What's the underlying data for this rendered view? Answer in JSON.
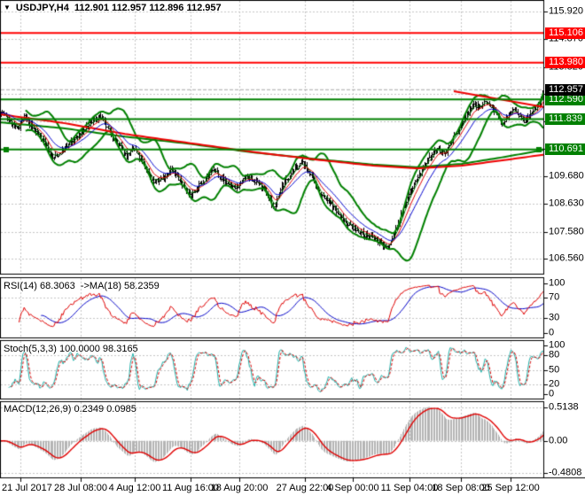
{
  "title": {
    "dropdown_icon": "▼",
    "symbol_period": "USDJPY,H4",
    "ohlc": "112.901 112.957 112.896 112.957"
  },
  "chart_data": {
    "type": "candlestick",
    "symbol": "USDJPY",
    "timeframe": "H4",
    "last_open": 112.901,
    "last_high": 112.957,
    "last_low": 112.896,
    "last_close": 112.957,
    "x_labels": [
      "21 Jul 2017",
      "28 Jul 08:00",
      "4 Aug 12:00",
      "11 Aug 16:00",
      "18 Aug 20:00",
      "27 Aug 22:00",
      "4 Sep 00:00",
      "11 Sep 04:00",
      "18 Sep 08:00",
      "25 Sep 12:00"
    ],
    "price_ticks": [
      {
        "label": "115.920",
        "price": 115.92
      },
      {
        "label": "114.870",
        "price": 114.87
      },
      {
        "label": "113.820",
        "price": 113.82
      },
      {
        "label": "109.680",
        "price": 109.68
      },
      {
        "label": "108.630",
        "price": 108.63
      },
      {
        "label": "107.580",
        "price": 107.58
      },
      {
        "label": "106.560",
        "price": 106.56
      }
    ],
    "close_keyframes": [
      [
        0,
        112.15
      ],
      [
        10,
        111.75
      ],
      [
        18,
        111.45
      ],
      [
        26,
        111.95
      ],
      [
        34,
        111.55
      ],
      [
        46,
        111.15
      ],
      [
        58,
        110.35
      ],
      [
        68,
        110.6
      ],
      [
        78,
        110.95
      ],
      [
        90,
        111.3
      ],
      [
        102,
        111.75
      ],
      [
        112,
        111.95
      ],
      [
        120,
        111.5
      ],
      [
        132,
        110.9
      ],
      [
        142,
        110.45
      ],
      [
        150,
        110.75
      ],
      [
        160,
        110.15
      ],
      [
        172,
        109.45
      ],
      [
        182,
        109.6
      ],
      [
        192,
        109.95
      ],
      [
        204,
        109.4
      ],
      [
        214,
        108.95
      ],
      [
        226,
        109.45
      ],
      [
        240,
        109.95
      ],
      [
        252,
        109.5
      ],
      [
        264,
        109.2
      ],
      [
        276,
        109.65
      ],
      [
        290,
        109.45
      ],
      [
        302,
        108.9
      ],
      [
        308,
        108.45
      ],
      [
        316,
        109.25
      ],
      [
        328,
        109.85
      ],
      [
        340,
        110.2
      ],
      [
        350,
        109.7
      ],
      [
        360,
        109.0
      ],
      [
        372,
        108.65
      ],
      [
        384,
        108.1
      ],
      [
        396,
        107.75
      ],
      [
        408,
        107.5
      ],
      [
        420,
        107.35
      ],
      [
        430,
        107.1
      ],
      [
        437,
        106.98
      ],
      [
        444,
        107.55
      ],
      [
        452,
        108.25
      ],
      [
        462,
        109.15
      ],
      [
        472,
        109.75
      ],
      [
        482,
        110.3
      ],
      [
        492,
        110.75
      ],
      [
        500,
        110.5
      ],
      [
        508,
        111.05
      ],
      [
        516,
        111.4
      ],
      [
        524,
        111.95
      ],
      [
        532,
        112.4
      ],
      [
        540,
        112.3
      ],
      [
        546,
        112.55
      ],
      [
        552,
        112.35
      ],
      [
        558,
        112.1
      ],
      [
        565,
        111.7
      ],
      [
        572,
        111.95
      ],
      [
        578,
        112.25
      ],
      [
        584,
        111.95
      ],
      [
        590,
        111.8
      ],
      [
        596,
        112.05
      ],
      [
        602,
        112.25
      ],
      [
        607,
        112.45
      ],
      [
        613,
        112.957
      ]
    ],
    "overlays": {
      "bollinger": {
        "period": 20,
        "deviation": 2,
        "color": "#008000"
      },
      "ma_slow_red": {
        "color": "#ee0000",
        "keyframes": [
          [
            0,
            112.02
          ],
          [
            70,
            111.7
          ],
          [
            140,
            111.28
          ],
          [
            210,
            110.95
          ],
          [
            280,
            110.62
          ],
          [
            350,
            110.33
          ],
          [
            420,
            110.08
          ],
          [
            470,
            109.98
          ],
          [
            520,
            110.08
          ],
          [
            570,
            110.3
          ],
          [
            613,
            110.5
          ]
        ]
      },
      "ma_slow_green": {
        "color": "#008000",
        "keyframes": [
          [
            0,
            111.72
          ],
          [
            70,
            111.5
          ],
          [
            140,
            111.18
          ],
          [
            210,
            110.92
          ],
          [
            280,
            110.6
          ],
          [
            350,
            110.35
          ],
          [
            420,
            110.12
          ],
          [
            470,
            110.02
          ],
          [
            520,
            110.15
          ],
          [
            570,
            110.42
          ],
          [
            613,
            110.68
          ]
        ]
      },
      "fast_emas": [
        {
          "period": 5,
          "color": "#007000"
        },
        {
          "period": 10,
          "color": "#e00000"
        },
        {
          "period": 20,
          "color": "#0000d0"
        }
      ]
    },
    "levels": [
      {
        "price": 115.106,
        "label": "115.106",
        "color": "#ff0000",
        "selected": false
      },
      {
        "price": 113.98,
        "label": "113.980",
        "color": "#ff0000",
        "selected": false
      },
      {
        "price": 112.59,
        "label": "112.590",
        "color": "#008000",
        "selected": false
      },
      {
        "price": 111.839,
        "label": "111.839",
        "color": "#008000",
        "selected": false
      },
      {
        "price": 110.691,
        "label": "110.691",
        "color": "#008000",
        "selected": true
      }
    ],
    "current_price": {
      "value": 112.957,
      "label": "112.957",
      "badge_color": "#000000"
    },
    "trendline": {
      "color": "#ee0000",
      "from": [
        512,
        112.9
      ],
      "to": [
        613,
        112.3
      ]
    },
    "indicators": {
      "rsi": {
        "label": "RSI(14) 68.3063  ->MA(18) 58.2359",
        "period": 14,
        "ma_period": 18,
        "value": 68.3063,
        "ma_value": 58.2359,
        "ticks": [
          {
            "label": "100",
            "v": 100
          },
          {
            "label": "70",
            "v": 70
          },
          {
            "label": "30",
            "v": 30
          },
          {
            "label": "0",
            "v": 0
          }
        ],
        "grid_levels": [
          70,
          30
        ],
        "line_color": "#e00000",
        "ma_color": "#0000c8"
      },
      "stoch": {
        "label": "Stoch(5,3,3) 100.0000 98.3165",
        "value": 100.0,
        "signal": 98.3165,
        "ticks": [
          {
            "label": "100",
            "v": 100
          },
          {
            "label": "80",
            "v": 80
          },
          {
            "label": "50",
            "v": 50
          },
          {
            "label": "20",
            "v": 20
          },
          {
            "label": "0",
            "v": 0
          }
        ],
        "grid_levels": [
          80,
          50,
          20
        ],
        "k_color": "#20b2aa",
        "d_color": "#dd0000"
      },
      "macd": {
        "label": "MACD(12,26,9) 0.2349 0.0985",
        "value": 0.2349,
        "signal": 0.0985,
        "ticks": [
          {
            "label": "0.5138",
            "v": 0.5138
          },
          {
            "label": "0.00",
            "v": 0
          },
          {
            "label": "-0.4808",
            "v": -0.4808
          }
        ],
        "hist_color": "#b4b4b4",
        "signal_color": "#e00000"
      }
    },
    "grid_color": "#c6c6c6",
    "bar_color": "#000000"
  }
}
